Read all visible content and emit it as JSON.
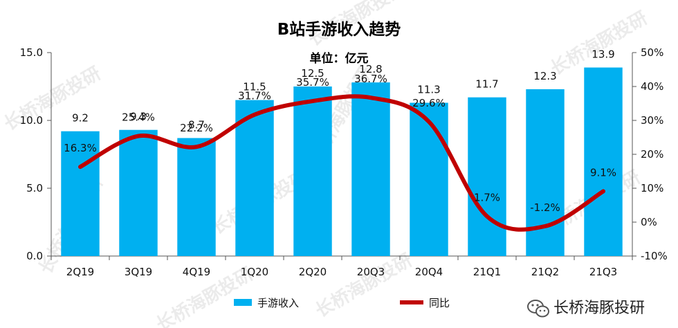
{
  "chart_data": {
    "type": "bar",
    "title": "B站手游收入趋势",
    "subtitle": "单位：亿元",
    "categories": [
      "2Q19",
      "3Q19",
      "4Q19",
      "1Q20",
      "2Q20",
      "20Q3",
      "20Q4",
      "21Q1",
      "21Q2",
      "21Q3"
    ],
    "series": [
      {
        "name": "手游收入",
        "type": "bar",
        "axis": "left",
        "color": "#00B0F0",
        "values": [
          9.2,
          9.3,
          8.7,
          11.5,
          12.5,
          12.8,
          11.3,
          11.7,
          12.3,
          13.9
        ],
        "labels": [
          "9.2",
          "9.3",
          "8.7",
          "11.5",
          "12.5",
          "12.8",
          "11.3",
          "11.7",
          "12.3",
          "13.9"
        ]
      },
      {
        "name": "同比",
        "type": "line",
        "axis": "right",
        "color": "#C00000",
        "values": [
          16.3,
          25.4,
          22.2,
          31.7,
          35.7,
          36.7,
          29.6,
          1.7,
          -1.2,
          9.1
        ],
        "labels": [
          "16.3%",
          "25.4%",
          "22.2%",
          "31.7%",
          "35.7%",
          "36.7%",
          "29.6%",
          "1.7%",
          "-1.2%",
          "9.1%"
        ]
      }
    ],
    "y_left": {
      "min": 0,
      "max": 15,
      "ticks": [
        "0.0",
        "5.0",
        "10.0",
        "15.0"
      ],
      "tick_values": [
        0,
        5,
        10,
        15
      ]
    },
    "y_right": {
      "min": -10,
      "max": 50,
      "ticks": [
        "-10%",
        "0%",
        "10%",
        "20%",
        "30%",
        "40%",
        "50%"
      ],
      "tick_values": [
        -10,
        0,
        10,
        20,
        30,
        40,
        50
      ]
    },
    "grid": false,
    "legend_position": "bottom"
  },
  "brand": {
    "name": "长桥海豚投研",
    "icon": "wechat-icon"
  },
  "watermark": "长桥海豚投研"
}
